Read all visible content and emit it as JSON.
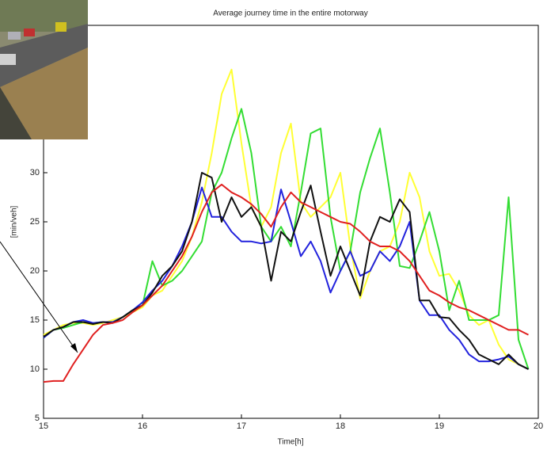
{
  "chart_data": {
    "type": "line",
    "title": "Average journey time in the entire motorway",
    "xlabel": "Time[h]",
    "ylabel": "[min/veh]",
    "xlim": [
      15,
      20
    ],
    "ylim": [
      5,
      45
    ],
    "xticks": [
      15,
      16,
      17,
      18,
      19,
      20
    ],
    "yticks": [
      5,
      10,
      15,
      20,
      25,
      30
    ],
    "x": [
      15.0,
      15.1,
      15.2,
      15.3,
      15.4,
      15.5,
      15.6,
      15.7,
      15.8,
      15.9,
      16.0,
      16.1,
      16.2,
      16.3,
      16.4,
      16.5,
      16.6,
      16.7,
      16.8,
      16.9,
      17.0,
      17.1,
      17.2,
      17.3,
      17.4,
      17.5,
      17.6,
      17.7,
      17.8,
      17.9,
      18.0,
      18.1,
      18.2,
      18.3,
      18.4,
      18.5,
      18.6,
      18.7,
      18.8,
      18.9,
      19.0,
      19.1,
      19.2,
      19.3,
      19.4,
      19.5,
      19.6,
      19.7,
      19.8,
      19.9
    ],
    "series": [
      {
        "color": "#ffff33",
        "values": [
          13.5,
          14,
          14.5,
          14.7,
          14.7,
          14.5,
          14.7,
          15,
          15.3,
          15.8,
          16.3,
          17.5,
          18,
          19.5,
          21,
          23.5,
          27,
          32,
          38,
          40.5,
          33,
          26.5,
          24.5,
          26.5,
          32,
          35,
          27,
          25.5,
          26.5,
          27.5,
          30,
          22.5,
          17.2,
          20,
          22,
          22.5,
          25,
          30,
          27.5,
          22,
          19.5,
          19.7,
          18,
          15.5,
          14.5,
          15,
          12.5,
          11,
          10.5,
          10
        ]
      },
      {
        "color": "#33dd33",
        "values": [
          13.2,
          14,
          14.2,
          14.5,
          14.8,
          14.7,
          14.8,
          14.8,
          15.3,
          16,
          16.5,
          21,
          18.5,
          19,
          20,
          21.5,
          23,
          28,
          30,
          33.5,
          36.5,
          32,
          24.5,
          23,
          24.5,
          22.5,
          28,
          34,
          34.5,
          25.5,
          20,
          22,
          28,
          31.5,
          34.5,
          28,
          20.5,
          20.3,
          23,
          26,
          22,
          16,
          19,
          15,
          15,
          15,
          15.5,
          27.5,
          13,
          10
        ]
      },
      {
        "color": "#2222dd",
        "values": [
          13.2,
          14,
          14.3,
          14.8,
          15,
          14.7,
          14.8,
          14.8,
          15.3,
          16,
          16.8,
          18,
          19,
          20.5,
          22.5,
          25,
          28.5,
          25.5,
          25.5,
          24,
          23,
          23,
          22.8,
          23,
          28.3,
          25,
          21.5,
          23,
          21,
          17.8,
          20,
          22,
          19.5,
          20,
          22,
          21,
          22.5,
          25,
          17,
          15.5,
          15.5,
          14,
          13,
          11.5,
          10.8,
          10.8,
          11,
          11.3,
          10.5,
          10
        ]
      },
      {
        "color": "#111111",
        "values": [
          13.3,
          14,
          14.3,
          14.8,
          14.8,
          14.6,
          14.8,
          14.7,
          15.3,
          16,
          16.5,
          17.8,
          19.5,
          20.5,
          22,
          25,
          30,
          29.5,
          25,
          27.5,
          25.5,
          26.5,
          24.5,
          19,
          24,
          23,
          26,
          28.7,
          24,
          19.5,
          22.5,
          20,
          17.5,
          23,
          25.5,
          25,
          27.3,
          26,
          17,
          17,
          15.3,
          15.2,
          14,
          13,
          11.5,
          11,
          10.5,
          11.5,
          10.5,
          10
        ]
      },
      {
        "color": "#e02020",
        "values": [
          8.7,
          8.8,
          8.8,
          10.5,
          12,
          13.5,
          14.5,
          14.7,
          15,
          15.8,
          16.5,
          17.5,
          18.5,
          20,
          21.5,
          23.5,
          26,
          28,
          28.8,
          28,
          27.5,
          26.8,
          25.8,
          24.5,
          26.5,
          28,
          27,
          26.5,
          26,
          25.5,
          25,
          24.8,
          24,
          23,
          22.5,
          22.5,
          22,
          21,
          19.5,
          18,
          17.5,
          16.8,
          16.3,
          16,
          15.5,
          15,
          14.5,
          14,
          14,
          13.5
        ]
      }
    ]
  }
}
